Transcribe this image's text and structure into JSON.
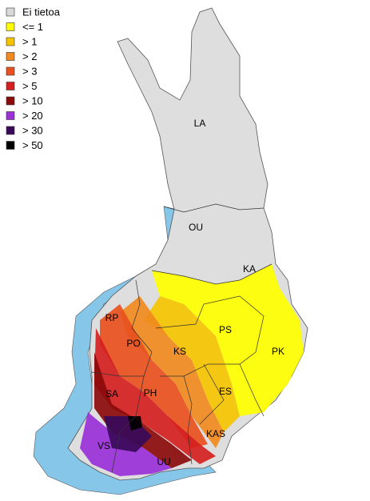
{
  "legend": {
    "items": [
      {
        "label": "Ei tietoa",
        "color": "#d9d9d9"
      },
      {
        "label": "<= 1",
        "color": "#ffff00"
      },
      {
        "label": "> 1",
        "color": "#f5c400"
      },
      {
        "label": "> 2",
        "color": "#f08a1e"
      },
      {
        "label": "> 3",
        "color": "#e8501e"
      },
      {
        "label": "> 5",
        "color": "#d42020"
      },
      {
        "label": "> 10",
        "color": "#8b0a0a"
      },
      {
        "label": "> 20",
        "color": "#9a30d8"
      },
      {
        "label": "> 30",
        "color": "#3a0a5a"
      },
      {
        "label": "> 50",
        "color": "#000000"
      }
    ]
  },
  "regions": [
    "LA",
    "OU",
    "KA",
    "RP",
    "PO",
    "KS",
    "PS",
    "PK",
    "SA",
    "PH",
    "ES",
    "KAS",
    "VS",
    "UU"
  ]
}
